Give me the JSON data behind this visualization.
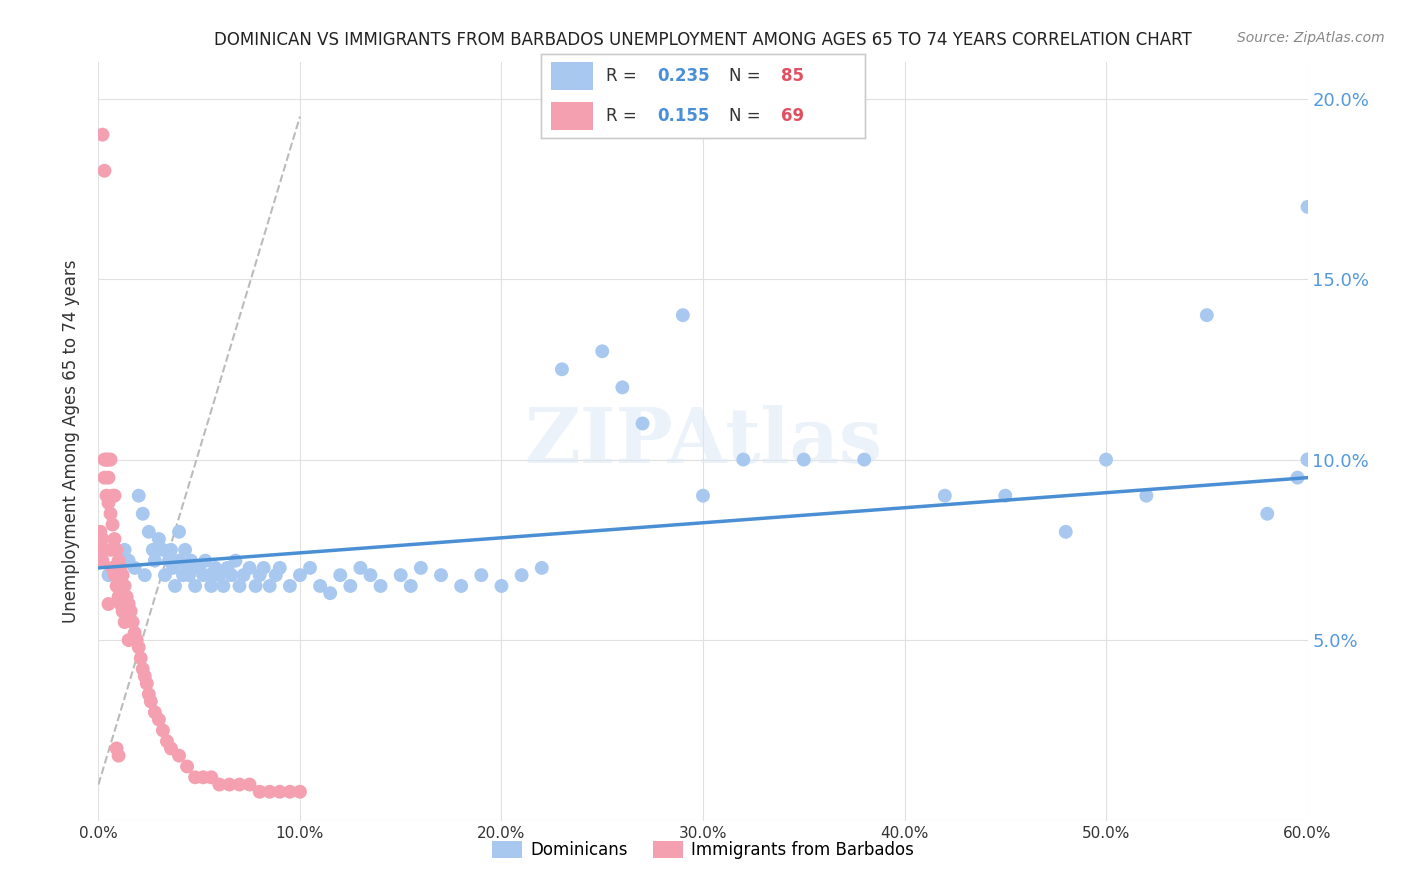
{
  "title": "DOMINICAN VS IMMIGRANTS FROM BARBADOS UNEMPLOYMENT AMONG AGES 65 TO 74 YEARS CORRELATION CHART",
  "source": "Source: ZipAtlas.com",
  "ylabel": "Unemployment Among Ages 65 to 74 years",
  "xlim": [
    0.0,
    0.6
  ],
  "ylim": [
    0.0,
    0.21
  ],
  "x_ticks": [
    0.0,
    0.1,
    0.2,
    0.3,
    0.4,
    0.5,
    0.6
  ],
  "x_tick_labels": [
    "0.0%",
    "10.0%",
    "20.0%",
    "30.0%",
    "40.0%",
    "50.0%",
    "60.0%"
  ],
  "y_ticks": [
    0.0,
    0.05,
    0.1,
    0.15,
    0.2
  ],
  "y_tick_labels": [
    "",
    "5.0%",
    "10.0%",
    "15.0%",
    "20.0%"
  ],
  "dominican_color": "#a8c8f0",
  "barbados_color": "#f4a0b0",
  "trend_dominican_color": "#4a8fd4",
  "legend_R_dominican": "0.235",
  "legend_N_dominican": "85",
  "legend_R_barbados": "0.155",
  "legend_N_barbados": "69",
  "watermark": "ZIPAtlas",
  "dominican_x": [
    0.005,
    0.01,
    0.013,
    0.015,
    0.018,
    0.02,
    0.022,
    0.023,
    0.025,
    0.027,
    0.028,
    0.03,
    0.032,
    0.033,
    0.035,
    0.036,
    0.037,
    0.038,
    0.04,
    0.04,
    0.042,
    0.043,
    0.044,
    0.045,
    0.046,
    0.048,
    0.05,
    0.052,
    0.053,
    0.055,
    0.056,
    0.058,
    0.06,
    0.062,
    0.064,
    0.066,
    0.068,
    0.07,
    0.072,
    0.075,
    0.078,
    0.08,
    0.082,
    0.085,
    0.088,
    0.09,
    0.095,
    0.1,
    0.105,
    0.11,
    0.115,
    0.12,
    0.125,
    0.13,
    0.135,
    0.14,
    0.15,
    0.155,
    0.16,
    0.17,
    0.18,
    0.19,
    0.2,
    0.21,
    0.22,
    0.23,
    0.25,
    0.27,
    0.3,
    0.32,
    0.35,
    0.38,
    0.42,
    0.45,
    0.48,
    0.5,
    0.52,
    0.55,
    0.58,
    0.595,
    0.6,
    0.6,
    0.6,
    0.26,
    0.29
  ],
  "dominican_y": [
    0.068,
    0.07,
    0.075,
    0.072,
    0.07,
    0.09,
    0.085,
    0.068,
    0.08,
    0.075,
    0.072,
    0.078,
    0.075,
    0.068,
    0.072,
    0.075,
    0.07,
    0.065,
    0.072,
    0.08,
    0.068,
    0.075,
    0.07,
    0.068,
    0.072,
    0.065,
    0.07,
    0.068,
    0.072,
    0.068,
    0.065,
    0.07,
    0.068,
    0.065,
    0.07,
    0.068,
    0.072,
    0.065,
    0.068,
    0.07,
    0.065,
    0.068,
    0.07,
    0.065,
    0.068,
    0.07,
    0.065,
    0.068,
    0.07,
    0.065,
    0.063,
    0.068,
    0.065,
    0.07,
    0.068,
    0.065,
    0.068,
    0.065,
    0.07,
    0.068,
    0.065,
    0.068,
    0.065,
    0.068,
    0.07,
    0.125,
    0.13,
    0.11,
    0.09,
    0.1,
    0.1,
    0.1,
    0.09,
    0.09,
    0.08,
    0.1,
    0.09,
    0.14,
    0.085,
    0.095,
    0.1,
    0.17,
    0.1,
    0.12,
    0.14
  ],
  "barbados_x": [
    0.001,
    0.001,
    0.002,
    0.002,
    0.003,
    0.003,
    0.004,
    0.004,
    0.005,
    0.005,
    0.005,
    0.006,
    0.006,
    0.007,
    0.007,
    0.008,
    0.008,
    0.009,
    0.009,
    0.01,
    0.01,
    0.011,
    0.011,
    0.012,
    0.012,
    0.013,
    0.013,
    0.014,
    0.015,
    0.015,
    0.016,
    0.017,
    0.018,
    0.019,
    0.02,
    0.021,
    0.022,
    0.023,
    0.024,
    0.025,
    0.026,
    0.028,
    0.03,
    0.032,
    0.034,
    0.036,
    0.04,
    0.044,
    0.048,
    0.052,
    0.056,
    0.06,
    0.065,
    0.07,
    0.075,
    0.08,
    0.085,
    0.09,
    0.095,
    0.1,
    0.002,
    0.003,
    0.004,
    0.005,
    0.006,
    0.007,
    0.008,
    0.009,
    0.01
  ],
  "barbados_y": [
    0.08,
    0.075,
    0.078,
    0.072,
    0.1,
    0.095,
    0.1,
    0.09,
    0.095,
    0.088,
    0.06,
    0.085,
    0.075,
    0.082,
    0.07,
    0.078,
    0.068,
    0.075,
    0.065,
    0.072,
    0.062,
    0.07,
    0.06,
    0.068,
    0.058,
    0.065,
    0.055,
    0.062,
    0.06,
    0.05,
    0.058,
    0.055,
    0.052,
    0.05,
    0.048,
    0.045,
    0.042,
    0.04,
    0.038,
    0.035,
    0.033,
    0.03,
    0.028,
    0.025,
    0.022,
    0.02,
    0.018,
    0.015,
    0.012,
    0.012,
    0.012,
    0.01,
    0.01,
    0.01,
    0.01,
    0.008,
    0.008,
    0.008,
    0.008,
    0.008,
    0.19,
    0.18,
    0.1,
    0.1,
    0.1,
    0.09,
    0.09,
    0.02,
    0.018
  ],
  "trend_dom_x0": 0.0,
  "trend_dom_x1": 0.6,
  "trend_dom_y0": 0.07,
  "trend_dom_y1": 0.095,
  "trend_bar_x0": 0.0,
  "trend_bar_x1": 0.1,
  "trend_bar_y0": 0.01,
  "trend_bar_y1": 0.195
}
